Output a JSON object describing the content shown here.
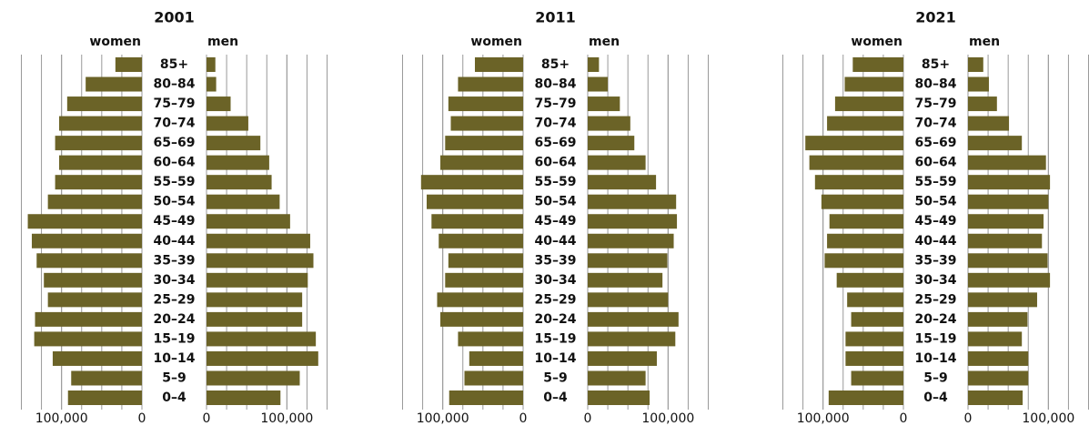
{
  "chart_data": [
    {
      "type": "pyramid",
      "title": "2001",
      "color": "#6b6327",
      "categories": [
        "85+",
        "80–84",
        "75–79",
        "70–74",
        "65–69",
        "60–64",
        "55–59",
        "50–54",
        "45–49",
        "40–44",
        "35–39",
        "30–34",
        "25–29",
        "20–24",
        "15–19",
        "10–14",
        "5–9",
        "0–4"
      ],
      "series": [
        {
          "name": "women",
          "values": [
            33000,
            70000,
            93000,
            103000,
            108000,
            103000,
            108000,
            117000,
            142000,
            137000,
            131000,
            122000,
            117000,
            133000,
            134000,
            111000,
            88000,
            92000
          ]
        },
        {
          "name": "men",
          "values": [
            11000,
            12000,
            30000,
            52000,
            67000,
            78000,
            81000,
            91000,
            104000,
            129000,
            133000,
            126000,
            119000,
            119000,
            136000,
            139000,
            116000,
            92000
          ]
        }
      ],
      "xlim": [
        0,
        163000
      ],
      "xticks": [
        0,
        {
          "value": 100000,
          "label": "100,000"
        }
      ],
      "grid_step": 25000
    },
    {
      "type": "pyramid",
      "title": "2011",
      "color": "#6b6327",
      "categories": [
        "85+",
        "80–84",
        "75–79",
        "70–74",
        "65–69",
        "60–64",
        "55–59",
        "50–54",
        "45–49",
        "40–44",
        "35–39",
        "30–34",
        "25–29",
        "20–24",
        "15–19",
        "10–14",
        "5–9",
        "0–4"
      ],
      "series": [
        {
          "name": "women",
          "values": [
            60000,
            81000,
            93000,
            90000,
            97000,
            103000,
            127000,
            120000,
            114000,
            105000,
            93000,
            97000,
            107000,
            103000,
            81000,
            67000,
            73000,
            92000
          ]
        },
        {
          "name": "men",
          "values": [
            14000,
            25000,
            40000,
            53000,
            58000,
            72000,
            85000,
            110000,
            111000,
            107000,
            99000,
            93000,
            100000,
            113000,
            109000,
            86000,
            72000,
            77000
          ]
        }
      ],
      "xlim": [
        0,
        163000
      ],
      "xticks": [
        0,
        {
          "value": 100000,
          "label": "100,000"
        }
      ],
      "grid_step": 25000
    },
    {
      "type": "pyramid",
      "title": "2021",
      "color": "#6b6327",
      "categories": [
        "85+",
        "80–84",
        "75–79",
        "70–74",
        "65–69",
        "60–64",
        "55–59",
        "50–54",
        "45–49",
        "40–44",
        "35–39",
        "30–34",
        "25–29",
        "20–24",
        "15–19",
        "10–14",
        "5–9",
        "0–4"
      ],
      "series": [
        {
          "name": "women",
          "values": [
            63000,
            73000,
            85000,
            95000,
            122000,
            117000,
            110000,
            102000,
            92000,
            95000,
            98000,
            83000,
            70000,
            65000,
            72000,
            72000,
            65000,
            93000
          ]
        },
        {
          "name": "men",
          "values": [
            19000,
            26000,
            36000,
            51000,
            67000,
            97000,
            102000,
            100000,
            94000,
            92000,
            99000,
            102000,
            86000,
            74000,
            67000,
            75000,
            75000,
            68000
          ]
        }
      ],
      "xlim": [
        0,
        163000
      ],
      "xticks": [
        0,
        {
          "value": 100000,
          "label": "100,000"
        }
      ],
      "grid_step": 25000
    }
  ]
}
